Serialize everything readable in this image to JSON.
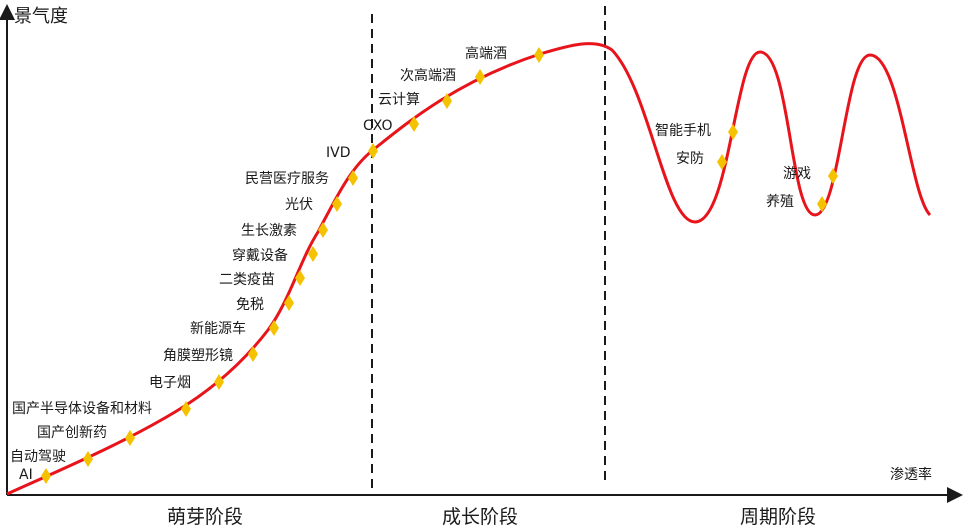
{
  "y_axis_label": "景气度",
  "x_axis_label": "渗透率",
  "stages": [
    "萌芽阶段",
    "成长阶段",
    "周期阶段"
  ],
  "colors": {
    "curve": "#e8141c",
    "marker": "#f5c200",
    "axis": "#1a1a1a",
    "divider": "#1a1a1a"
  },
  "industries": [
    "AI",
    "自动驾驶",
    "国产创新药",
    "国产半导体设备和材料",
    "电子烟",
    "角膜塑形镜",
    "新能源车",
    "免税",
    "二类疫苗",
    "穿戴设备",
    "生长激素",
    "光伏",
    "民营医疗服务",
    "IVD",
    "CXO",
    "云计算",
    "次高端酒",
    "高端酒",
    "智能手机",
    "安防",
    "游戏",
    "养殖"
  ]
}
